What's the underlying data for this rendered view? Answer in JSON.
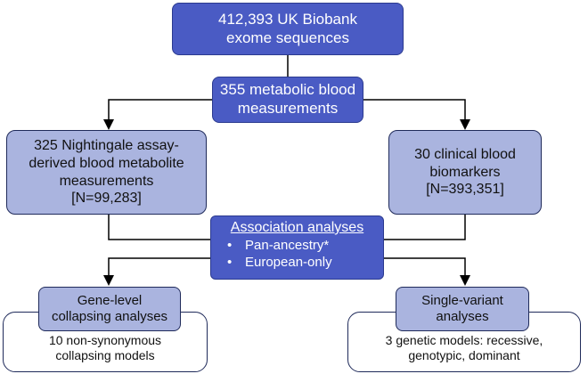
{
  "nodes": {
    "exomes": [
      "412,393 UK Biobank",
      "exome sequences"
    ],
    "measurements": [
      "355 metabolic blood",
      "measurements"
    ],
    "nightingale": [
      "325 Nightingale assay-",
      "derived blood metabolite",
      "measurements",
      "[N=99,283]"
    ],
    "clinical": [
      "30 clinical blood",
      "biomarkers",
      "[N=393,351]"
    ],
    "association": {
      "heading": "Association analyses",
      "items": [
        "Pan-ancestry*",
        "European-only"
      ]
    },
    "gene_level": {
      "title": [
        "Gene-level",
        "collapsing analyses"
      ],
      "detail": [
        "10 non-synonymous",
        "collapsing models"
      ]
    },
    "single_variant": {
      "title": [
        "Single-variant",
        "analyses"
      ],
      "detail": [
        "3 genetic models: recessive,",
        "genotypic, dominant"
      ]
    }
  },
  "colors": {
    "dark_box": "#4a5bc4",
    "light_box": "#aab4df",
    "border": "#1f2a5a",
    "line": "#000000"
  }
}
